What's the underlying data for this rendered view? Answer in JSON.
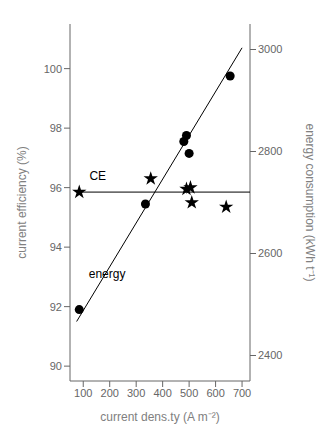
{
  "chart_data": {
    "type": "scatter",
    "xlabel": "current dens.ty  (A m⁻²)",
    "ylabel": "current efficiency (%)",
    "y2label": "energy consumption  (kWh t⁻¹)",
    "xlim": [
      50,
      730
    ],
    "ylim": [
      89.5,
      101.5
    ],
    "y2lim": [
      2350,
      3050
    ],
    "xticks": [
      100,
      200,
      300,
      400,
      500,
      600,
      700
    ],
    "yticks": [
      90,
      92,
      94,
      96,
      98,
      100
    ],
    "y2ticks": [
      2400,
      2600,
      2800,
      3000
    ],
    "series": [
      {
        "type": "line",
        "color": "black",
        "x": [
          75,
          700
        ],
        "values": [
          91.5,
          100.7
        ]
      },
      {
        "type": "line",
        "color": "black",
        "x": [
          75,
          730
        ],
        "values": [
          95.85,
          95.85
        ]
      },
      {
        "type": "scatter",
        "marker": "circle",
        "color": "black",
        "x": [
          85,
          335,
          480,
          490,
          500,
          655
        ],
        "values": [
          91.9,
          95.45,
          97.55,
          97.75,
          97.15,
          99.75
        ]
      },
      {
        "type": "scatter",
        "marker": "star",
        "color": "black",
        "x": [
          85,
          355,
          490,
          505,
          510,
          640
        ],
        "values": [
          95.85,
          96.3,
          95.95,
          96.0,
          95.5,
          95.35
        ]
      }
    ],
    "annotations": [
      {
        "text": "CE",
        "x": 155,
        "y": 96.1
      },
      {
        "text": "energy",
        "x": 190,
        "y": 92.8
      }
    ]
  }
}
